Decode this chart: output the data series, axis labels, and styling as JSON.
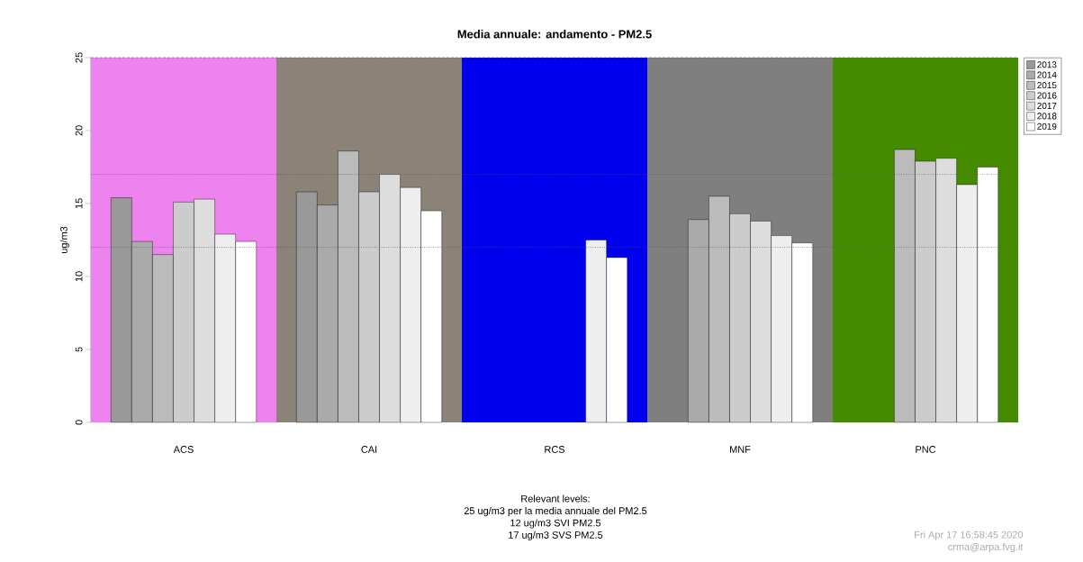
{
  "chart_data": {
    "type": "bar",
    "title": "Media annuale: andamento - PM2.5",
    "ylabel": "ug/m3",
    "categories": [
      "ACS",
      "CAI",
      "RCS",
      "MNF",
      "PNC"
    ],
    "series": [
      {
        "name": "2013",
        "color": "#999999",
        "values": [
          15.4,
          15.8,
          null,
          null,
          null
        ]
      },
      {
        "name": "2014",
        "color": "#aaaaaa",
        "values": [
          12.4,
          14.9,
          null,
          13.9,
          null
        ]
      },
      {
        "name": "2015",
        "color": "#bbbbbb",
        "values": [
          11.5,
          18.6,
          null,
          15.5,
          18.7
        ]
      },
      {
        "name": "2016",
        "color": "#cccccc",
        "values": [
          15.1,
          15.8,
          null,
          14.3,
          17.9
        ]
      },
      {
        "name": "2017",
        "color": "#dddddd",
        "values": [
          15.3,
          17.0,
          null,
          13.8,
          18.1
        ]
      },
      {
        "name": "2018",
        "color": "#eeeeee",
        "values": [
          12.9,
          16.1,
          12.5,
          12.8,
          16.3
        ]
      },
      {
        "name": "2019",
        "color": "#ffffff",
        "values": [
          12.4,
          14.5,
          11.3,
          12.3,
          17.5
        ]
      }
    ],
    "ylim": [
      0,
      25
    ],
    "yticks": [
      0,
      5,
      10,
      15,
      20,
      25
    ],
    "bands": [
      {
        "axis": "x",
        "from": "ACS",
        "to": "ACS",
        "color": "#ee82ee"
      },
      {
        "axis": "x",
        "from": "CAI",
        "to": "CAI",
        "color": "#8b8378"
      },
      {
        "axis": "x",
        "from": "RCS",
        "to": "RCS",
        "color": "#0000ee"
      },
      {
        "axis": "x",
        "from": "MNF",
        "to": "MNF",
        "color": "#7f7f7f"
      },
      {
        "axis": "x",
        "from": "PNC",
        "to": "PNC",
        "color": "#458b00"
      }
    ],
    "ref_lines": [
      {
        "axis": "y",
        "value": 25,
        "line_style": "dashed",
        "color": "#555555"
      },
      {
        "axis": "y",
        "value": 17,
        "line_style": "dotted",
        "color": "#555555"
      },
      {
        "axis": "y",
        "value": 12,
        "line_style": "dotted",
        "color": "#555555"
      }
    ],
    "annotations": [
      "Relevant levels:",
      "25 ug/m3 per la media annuale del PM2.5",
      "12 ug/m3 SVI PM2.5",
      "17 ug/m3 SVS PM2.5",
      "Fri Apr 17 16:58:45 2020",
      "crma@arpa.fvg.it"
    ],
    "legend": "top right",
    "grid": false
  }
}
